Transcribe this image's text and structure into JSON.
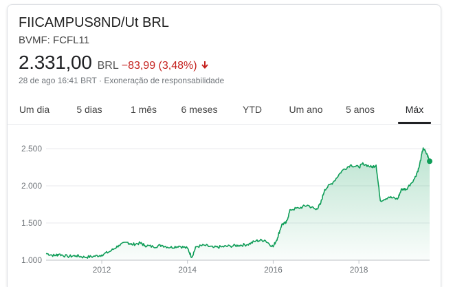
{
  "header": {
    "title": "FIICAMPUS8ND/Ut BRL",
    "ticker": "BVMF: FCFL11"
  },
  "quote": {
    "price": "2.331,00",
    "currency": "BRL",
    "change": "−83,99 (3,48%)",
    "direction": "down",
    "timestamp": "28 de ago 16:41 BRT",
    "separator": "·",
    "disclaimer": "Exoneração de responsabilidade"
  },
  "tabs": [
    {
      "label": "Um dia"
    },
    {
      "label": "5 dias"
    },
    {
      "label": "1 mês"
    },
    {
      "label": "6 meses"
    },
    {
      "label": "YTD"
    },
    {
      "label": "Um ano"
    },
    {
      "label": "5 anos"
    },
    {
      "label": "Máx",
      "active": true
    }
  ],
  "colors": {
    "line": "#0f9d58",
    "down": "#c5221f",
    "grid": "#e8eaed"
  },
  "chart_data": {
    "type": "area",
    "title": "",
    "xlabel": "",
    "ylabel": "",
    "ylim": [
      1000,
      2500
    ],
    "y_ticks": [
      "1.000",
      "1.500",
      "2.000",
      "2.500"
    ],
    "x_ticks": [
      {
        "label": "2012",
        "x": 2012
      },
      {
        "label": "2014",
        "x": 2014
      },
      {
        "label": "2016",
        "x": 2016
      },
      {
        "label": "2018",
        "x": 2018
      }
    ],
    "grid": true,
    "series": [
      {
        "x": [
          2010.7,
          2010.9,
          2011.0,
          2011.2,
          2011.4,
          2011.6,
          2011.8,
          2012.0,
          2012.2,
          2012.4,
          2012.6,
          2012.7,
          2012.9,
          2013.0,
          2013.2,
          2013.4,
          2013.6,
          2013.8,
          2014.0,
          2014.1,
          2014.2,
          2014.4,
          2014.6,
          2014.8,
          2015.0,
          2015.2,
          2015.4,
          2015.6,
          2015.8,
          2016.0,
          2016.1,
          2016.2,
          2016.3,
          2016.4,
          2016.6,
          2016.8,
          2017.0,
          2017.1,
          2017.2,
          2017.4,
          2017.6,
          2017.8,
          2018.0,
          2018.1,
          2018.3,
          2018.4,
          2018.5,
          2018.7,
          2018.9,
          2019.0,
          2019.1,
          2019.3,
          2019.4,
          2019.5,
          2019.6,
          2019.65
        ],
        "y": [
          1090,
          1060,
          1080,
          1050,
          1060,
          1040,
          1050,
          1070,
          1120,
          1200,
          1240,
          1210,
          1230,
          1200,
          1180,
          1200,
          1170,
          1190,
          1160,
          1040,
          1180,
          1200,
          1170,
          1180,
          1190,
          1200,
          1210,
          1260,
          1270,
          1180,
          1300,
          1480,
          1500,
          1680,
          1700,
          1740,
          1680,
          1750,
          1950,
          2050,
          2200,
          2280,
          2250,
          2300,
          2250,
          2280,
          1800,
          1850,
          1820,
          1960,
          1950,
          2100,
          2240,
          2510,
          2410,
          2331
        ]
      }
    ]
  }
}
